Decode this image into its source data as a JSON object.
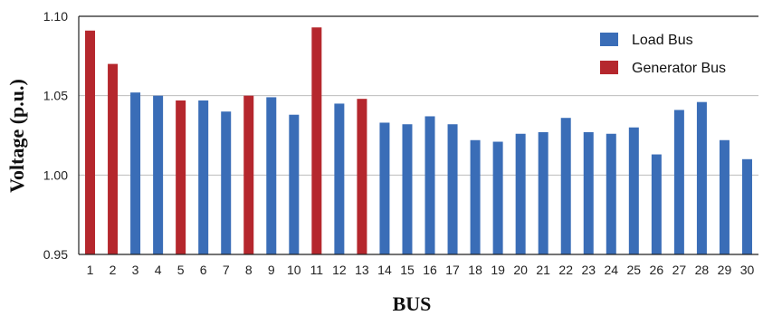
{
  "chart_data": {
    "type": "bar",
    "title": "",
    "xlabel": "BUS",
    "ylabel": "Voltage  (p.u.)",
    "ylim": [
      0.95,
      1.1
    ],
    "yticks": [
      "0.95",
      "1.00",
      "1.05",
      "1.10"
    ],
    "grid": "horizontal",
    "legend_position": "top-right",
    "categories": [
      "1",
      "2",
      "3",
      "4",
      "5",
      "6",
      "7",
      "8",
      "9",
      "10",
      "11",
      "12",
      "13",
      "14",
      "15",
      "16",
      "17",
      "18",
      "19",
      "20",
      "21",
      "22",
      "23",
      "24",
      "25",
      "26",
      "27",
      "28",
      "29",
      "30"
    ],
    "values": [
      1.091,
      1.07,
      1.052,
      1.05,
      1.047,
      1.047,
      1.04,
      1.05,
      1.049,
      1.038,
      1.093,
      1.045,
      1.048,
      1.033,
      1.032,
      1.037,
      1.032,
      1.022,
      1.021,
      1.026,
      1.027,
      1.036,
      1.027,
      1.026,
      1.03,
      1.013,
      1.041,
      1.046,
      1.022,
      1.01
    ],
    "bus_types": [
      "generator",
      "generator",
      "load",
      "load",
      "generator",
      "load",
      "load",
      "generator",
      "load",
      "load",
      "generator",
      "load",
      "generator",
      "load",
      "load",
      "load",
      "load",
      "load",
      "load",
      "load",
      "load",
      "load",
      "load",
      "load",
      "load",
      "load",
      "load",
      "load",
      "load",
      "load"
    ],
    "series": [
      {
        "key": "load",
        "name": "Load Bus",
        "color": "#3a6db7"
      },
      {
        "key": "generator",
        "name": "Generator Bus",
        "color": "#b5272d"
      }
    ]
  }
}
